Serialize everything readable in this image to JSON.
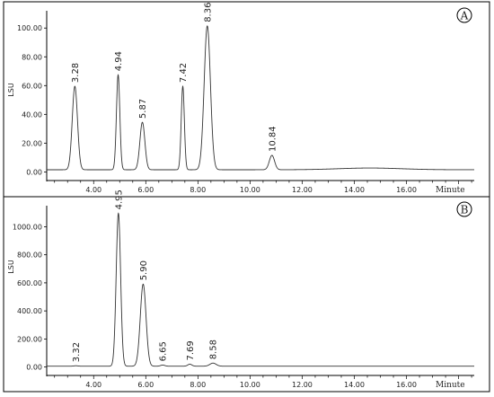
{
  "chart_data": [
    {
      "type": "line",
      "panel_label": "A",
      "ylabel": "LSU",
      "xlabel": "Minute",
      "xlim": [
        2.2,
        18.6
      ],
      "ylim": [
        -6,
        112
      ],
      "x_ticks": [
        4,
        6,
        8,
        10,
        12,
        14,
        16
      ],
      "x_tick_labels": [
        "4.00",
        "6.00",
        "8.00",
        "10.00",
        "12.00",
        "14.00",
        "16.00"
      ],
      "y_ticks": [
        0,
        20,
        40,
        60,
        80,
        100
      ],
      "y_tick_labels": [
        "0.00",
        "20.00",
        "40.00",
        "60.00",
        "80.00",
        "100.00"
      ],
      "baseline": 1.5,
      "peaks": [
        {
          "rt": 3.28,
          "label": "3.28",
          "height": 58,
          "width": 0.1
        },
        {
          "rt": 4.94,
          "label": "4.94",
          "height": 66,
          "width": 0.065
        },
        {
          "rt": 5.87,
          "label": "5.87",
          "height": 33,
          "width": 0.095
        },
        {
          "rt": 7.42,
          "label": "7.42",
          "height": 58,
          "width": 0.06
        },
        {
          "rt": 8.36,
          "label": "8.36",
          "height": 100,
          "width": 0.12
        },
        {
          "rt": 10.84,
          "label": "10.84",
          "height": 10,
          "width": 0.1
        }
      ],
      "humps": [
        {
          "rt": 14.6,
          "height": 1.2,
          "width": 1.2
        }
      ]
    },
    {
      "type": "line",
      "panel_label": "B",
      "ylabel": "LSU",
      "xlabel": "Minute",
      "xlim": [
        2.2,
        18.6
      ],
      "ylim": [
        -60,
        1150
      ],
      "x_ticks": [
        4,
        6,
        8,
        10,
        12,
        14,
        16
      ],
      "x_tick_labels": [
        "4.00",
        "6.00",
        "8.00",
        "10.00",
        "12.00",
        "14.00",
        "16.00"
      ],
      "y_ticks": [
        0,
        200,
        400,
        600,
        800,
        1000
      ],
      "y_tick_labels": [
        "0.00",
        "200.00",
        "400.00",
        "600.00",
        "800.00",
        "1000.00"
      ],
      "baseline": 6,
      "peaks": [
        {
          "rt": 3.32,
          "label": "3.32",
          "height": 3,
          "width": 0.08
        },
        {
          "rt": 4.95,
          "label": "4.95",
          "height": 1090,
          "width": 0.085
        },
        {
          "rt": 5.9,
          "label": "5.90",
          "height": 585,
          "width": 0.11
        },
        {
          "rt": 6.65,
          "label": "6.65",
          "height": 8,
          "width": 0.08
        },
        {
          "rt": 7.69,
          "label": "7.69",
          "height": 14,
          "width": 0.08
        },
        {
          "rt": 8.58,
          "label": "8.58",
          "height": 22,
          "width": 0.12
        }
      ],
      "humps": []
    }
  ]
}
